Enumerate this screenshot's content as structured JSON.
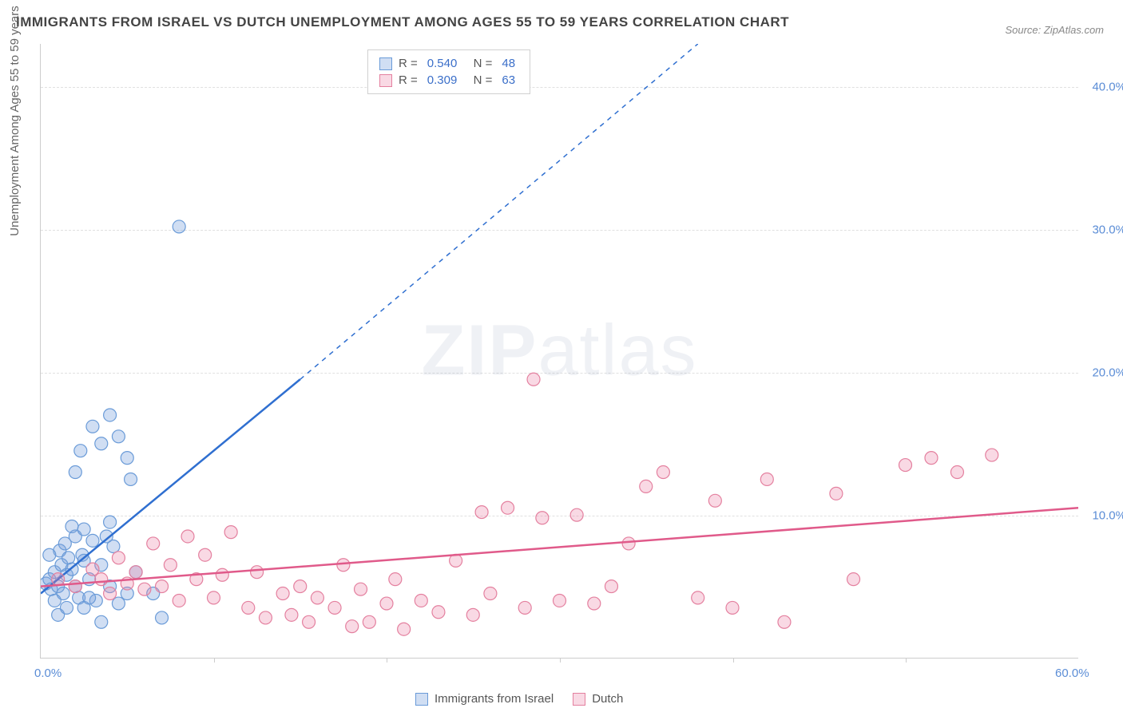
{
  "title": "IMMIGRANTS FROM ISRAEL VS DUTCH UNEMPLOYMENT AMONG AGES 55 TO 59 YEARS CORRELATION CHART",
  "source": "Source: ZipAtlas.com",
  "ylabel": "Unemployment Among Ages 55 to 59 years",
  "watermark_a": "ZIP",
  "watermark_b": "atlas",
  "chart": {
    "type": "scatter",
    "xlim": [
      0,
      60
    ],
    "ylim": [
      0,
      43
    ],
    "xticks": [
      {
        "v": 0,
        "label": "0.0%"
      },
      {
        "v": 60,
        "label": "60.0%"
      }
    ],
    "xminor": [
      10,
      20,
      30,
      40,
      50
    ],
    "yticks": [
      {
        "v": 10,
        "label": "10.0%"
      },
      {
        "v": 20,
        "label": "20.0%"
      },
      {
        "v": 30,
        "label": "30.0%"
      },
      {
        "v": 40,
        "label": "40.0%"
      }
    ],
    "background_color": "#ffffff",
    "grid_color": "#e0e0e0",
    "axis_color": "#cccccc",
    "tick_label_color": "#5b8dd6",
    "marker_radius": 8,
    "marker_stroke_width": 1.2,
    "trend_line_width": 2.5,
    "series": [
      {
        "name": "Immigrants from Israel",
        "color_fill": "rgba(120,160,220,0.35)",
        "color_stroke": "#6a9bd8",
        "trend_color": "#2f6fd0",
        "R": "0.540",
        "N": "48",
        "trend": {
          "x1": 0,
          "y1": 4.5,
          "x2_solid": 15,
          "y2_solid": 19.5,
          "x2_dash": 38,
          "y2_dash": 43
        },
        "points": [
          [
            0.3,
            5.2
          ],
          [
            0.5,
            5.5
          ],
          [
            0.6,
            4.8
          ],
          [
            0.8,
            6.0
          ],
          [
            1.0,
            5.0
          ],
          [
            1.1,
            7.5
          ],
          [
            1.2,
            6.5
          ],
          [
            1.3,
            4.5
          ],
          [
            1.4,
            8.0
          ],
          [
            1.5,
            5.8
          ],
          [
            1.6,
            7.0
          ],
          [
            1.8,
            6.2
          ],
          [
            2.0,
            8.5
          ],
          [
            2.0,
            5.0
          ],
          [
            2.2,
            4.2
          ],
          [
            2.4,
            7.2
          ],
          [
            2.5,
            9.0
          ],
          [
            2.5,
            3.5
          ],
          [
            2.8,
            5.5
          ],
          [
            3.0,
            8.2
          ],
          [
            3.2,
            4.0
          ],
          [
            3.5,
            6.5
          ],
          [
            3.5,
            2.5
          ],
          [
            4.0,
            5.0
          ],
          [
            4.0,
            9.5
          ],
          [
            4.2,
            7.8
          ],
          [
            4.5,
            3.8
          ],
          [
            5.0,
            4.5
          ],
          [
            5.2,
            12.5
          ],
          [
            5.5,
            6.0
          ],
          [
            2.3,
            14.5
          ],
          [
            3.0,
            16.2
          ],
          [
            3.5,
            15.0
          ],
          [
            2.0,
            13.0
          ],
          [
            4.5,
            15.5
          ],
          [
            5.0,
            14.0
          ],
          [
            4.0,
            17.0
          ],
          [
            6.5,
            4.5
          ],
          [
            7.0,
            2.8
          ],
          [
            8.0,
            30.2
          ],
          [
            1.0,
            3.0
          ],
          [
            0.8,
            4.0
          ],
          [
            1.5,
            3.5
          ],
          [
            2.8,
            4.2
          ],
          [
            3.8,
            8.5
          ],
          [
            0.5,
            7.2
          ],
          [
            1.8,
            9.2
          ],
          [
            2.5,
            6.8
          ]
        ]
      },
      {
        "name": "Dutch",
        "color_fill": "rgba(235,130,165,0.3)",
        "color_stroke": "#e4809f",
        "trend_color": "#e05a8a",
        "R": "0.309",
        "N": "63",
        "trend": {
          "x1": 0,
          "y1": 5.0,
          "x2_solid": 60,
          "y2_solid": 10.5,
          "x2_dash": 60,
          "y2_dash": 10.5
        },
        "points": [
          [
            1.0,
            5.5
          ],
          [
            2.0,
            5.0
          ],
          [
            3.0,
            6.2
          ],
          [
            3.5,
            5.5
          ],
          [
            4.0,
            4.5
          ],
          [
            4.5,
            7.0
          ],
          [
            5.0,
            5.2
          ],
          [
            5.5,
            6.0
          ],
          [
            6.0,
            4.8
          ],
          [
            6.5,
            8.0
          ],
          [
            7.0,
            5.0
          ],
          [
            7.5,
            6.5
          ],
          [
            8.0,
            4.0
          ],
          [
            8.5,
            8.5
          ],
          [
            9.0,
            5.5
          ],
          [
            9.5,
            7.2
          ],
          [
            10.0,
            4.2
          ],
          [
            10.5,
            5.8
          ],
          [
            11.0,
            8.8
          ],
          [
            12.0,
            3.5
          ],
          [
            12.5,
            6.0
          ],
          [
            13.0,
            2.8
          ],
          [
            14.0,
            4.5
          ],
          [
            14.5,
            3.0
          ],
          [
            15.0,
            5.0
          ],
          [
            15.5,
            2.5
          ],
          [
            16.0,
            4.2
          ],
          [
            17.0,
            3.5
          ],
          [
            17.5,
            6.5
          ],
          [
            18.0,
            2.2
          ],
          [
            18.5,
            4.8
          ],
          [
            19.0,
            2.5
          ],
          [
            20.0,
            3.8
          ],
          [
            20.5,
            5.5
          ],
          [
            21.0,
            2.0
          ],
          [
            22.0,
            4.0
          ],
          [
            23.0,
            3.2
          ],
          [
            24.0,
            6.8
          ],
          [
            25.0,
            3.0
          ],
          [
            25.5,
            10.2
          ],
          [
            26.0,
            4.5
          ],
          [
            27.0,
            10.5
          ],
          [
            28.0,
            3.5
          ],
          [
            29.0,
            9.8
          ],
          [
            30.0,
            4.0
          ],
          [
            28.5,
            19.5
          ],
          [
            31.0,
            10.0
          ],
          [
            32.0,
            3.8
          ],
          [
            33.0,
            5.0
          ],
          [
            35.0,
            12.0
          ],
          [
            38.0,
            4.2
          ],
          [
            40.0,
            3.5
          ],
          [
            43.0,
            2.5
          ],
          [
            36.0,
            13.0
          ],
          [
            39.0,
            11.0
          ],
          [
            42.0,
            12.5
          ],
          [
            46.0,
            11.5
          ],
          [
            50.0,
            13.5
          ],
          [
            51.5,
            14.0
          ],
          [
            53.0,
            13.0
          ],
          [
            55.0,
            14.2
          ],
          [
            47.0,
            5.5
          ],
          [
            34.0,
            8.0
          ]
        ]
      }
    ]
  },
  "legend_bottom": [
    {
      "label": "Immigrants from Israel",
      "fill": "rgba(120,160,220,0.35)",
      "stroke": "#6a9bd8"
    },
    {
      "label": "Dutch",
      "fill": "rgba(235,130,165,0.3)",
      "stroke": "#e4809f"
    }
  ]
}
